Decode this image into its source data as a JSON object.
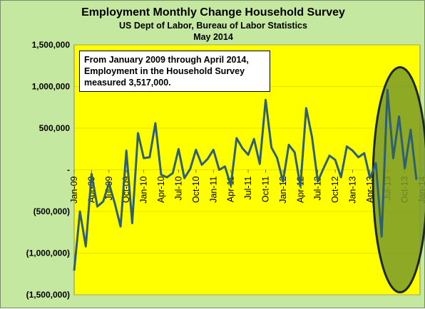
{
  "chart_data": {
    "type": "line",
    "title": "Employment Monthly Change Household Survey",
    "subtitle": "US Dept of Labor, Bureau of Labor Statistics",
    "date_line": "May 2014",
    "annotation": "From January 2009 through April 2014, Employment in the  Household Survey measured 3,517,000.",
    "ylim": [
      -1500000,
      1500000
    ],
    "yticks": [
      1500000,
      1000000,
      500000,
      0,
      -500000,
      -1000000,
      -1500000
    ],
    "ytick_labels": [
      "1,500,000",
      "1,000,000",
      "500,000",
      "-",
      "(500,000)",
      "(1,000,000)",
      "(1,500,000)"
    ],
    "xtick_labels": [
      "Jan-09",
      "Apr-09",
      "Jul-09",
      "Oct-09",
      "Jan-10",
      "Apr-10",
      "Jul-10",
      "Oct-10",
      "Jan-11",
      "Apr-11",
      "Jul-11",
      "Oct-11",
      "Jan-12",
      "Apr-12",
      "Jul-12",
      "Oct-12",
      "Jan-13",
      "Apr-13",
      "Jul-13",
      "Oct-13",
      "Jan-14",
      "Apr-14"
    ],
    "series": [
      {
        "color": "#2e5f73",
        "values": [
          -1210000,
          -500000,
          -920000,
          -50000,
          -440000,
          -380000,
          -160000,
          -400000,
          -680000,
          230000,
          -640000,
          440000,
          140000,
          150000,
          560000,
          -60000,
          -90000,
          -40000,
          250000,
          -100000,
          10000,
          240000,
          60000,
          130000,
          240000,
          0,
          40000,
          -190000,
          380000,
          260000,
          180000,
          370000,
          70000,
          840000,
          270000,
          140000,
          -140000,
          300000,
          210000,
          -200000,
          740000,
          390000,
          -140000,
          20000,
          170000,
          120000,
          -90000,
          280000,
          230000,
          150000,
          200000,
          -100000,
          80000,
          -800000,
          960000,
          140000,
          640000,
          20000,
          480000,
          -120000
        ]
      }
    ],
    "ellipse_highlight": {
      "from_month": 52,
      "to_month": 64,
      "color": "#7a9a2a"
    }
  }
}
